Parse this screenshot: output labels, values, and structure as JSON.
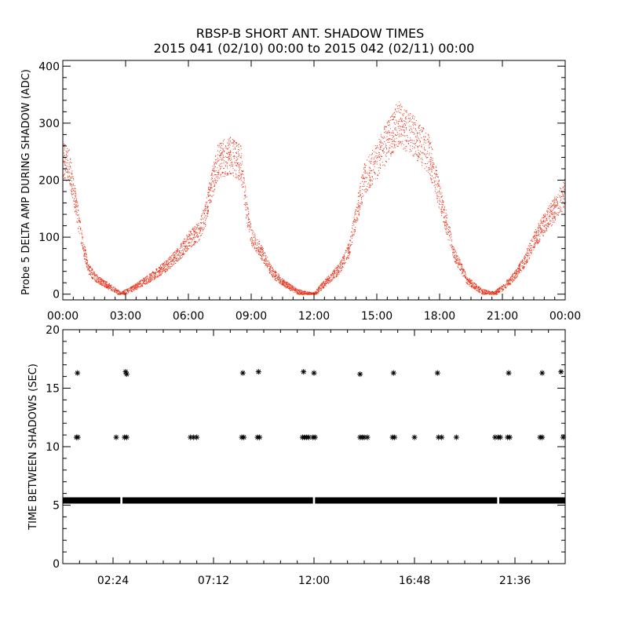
{
  "colors": {
    "background": "#ffffff",
    "axes": "#000000",
    "amp_points": "#e8361e",
    "gap_markers": "#000000"
  },
  "chart_data": [
    {
      "type": "scatter",
      "title": "RBSP-B SHORT ANT. SHADOW TIMES",
      "subtitle": "2015 041 (02/10) 00:00 to 2015 042 (02/11) 00:00",
      "xlabel": "",
      "ylabel": "Probe 5 DELTA AMP DURING SHADOW (ADC)",
      "xlim_hours": [
        0,
        24
      ],
      "ylim": [
        -10,
        410
      ],
      "xticks": [
        {
          "v": 0,
          "label": "00:00"
        },
        {
          "v": 3,
          "label": "03:00"
        },
        {
          "v": 6,
          "label": "06:00"
        },
        {
          "v": 9,
          "label": "09:00"
        },
        {
          "v": 12,
          "label": "12:00"
        },
        {
          "v": 15,
          "label": "15:00"
        },
        {
          "v": 18,
          "label": "18:00"
        },
        {
          "v": 21,
          "label": "21:00"
        },
        {
          "v": 24,
          "label": "00:00"
        }
      ],
      "yticks": [
        {
          "v": 0,
          "label": "0"
        },
        {
          "v": 100,
          "label": "100"
        },
        {
          "v": 200,
          "label": "200"
        },
        {
          "v": 300,
          "label": "300"
        },
        {
          "v": 400,
          "label": "400"
        }
      ],
      "envelope_hours": [
        0.0,
        0.3,
        0.5,
        0.9,
        1.2,
        1.6,
        2.1,
        2.6,
        2.75,
        3.3,
        4.2,
        5.0,
        5.6,
        6.0,
        6.5,
        6.8,
        7.0,
        7.4,
        8.0,
        8.5,
        8.8,
        9.0,
        9.4,
        10.0,
        10.6,
        11.2,
        11.6,
        12.0,
        12.5,
        13.2,
        13.7,
        14.0,
        14.4,
        15.0,
        15.5,
        16.0,
        16.5,
        17.0,
        17.5,
        18.0,
        18.7,
        19.3,
        20.0,
        20.6,
        21.0,
        21.5,
        22.0,
        22.5,
        23.0,
        23.5,
        24.0
      ],
      "envelope_values": [
        235,
        225,
        180,
        95,
        45,
        28,
        16,
        5,
        0,
        10,
        30,
        52,
        75,
        95,
        110,
        140,
        175,
        235,
        245,
        230,
        140,
        100,
        80,
        38,
        18,
        5,
        1,
        0,
        20,
        45,
        82,
        140,
        205,
        235,
        270,
        300,
        285,
        268,
        245,
        170,
        70,
        25,
        5,
        1,
        12,
        30,
        55,
        95,
        125,
        150,
        180
      ]
    },
    {
      "type": "scatter",
      "title": "",
      "xlabel": "",
      "ylabel": "TIME BETWEEN SHADOWS (SEC)",
      "xlim_hours": [
        0,
        24
      ],
      "ylim": [
        0,
        20
      ],
      "xticks": [
        {
          "v": 2.4,
          "label": "02:24"
        },
        {
          "v": 7.2,
          "label": "07:12"
        },
        {
          "v": 12.0,
          "label": "12:00"
        },
        {
          "v": 16.8,
          "label": "16:48"
        },
        {
          "v": 21.6,
          "label": "21:36"
        }
      ],
      "yticks": [
        {
          "v": 0,
          "label": "0"
        },
        {
          "v": 5,
          "label": "5"
        },
        {
          "v": 10,
          "label": "10"
        },
        {
          "v": 15,
          "label": "15"
        },
        {
          "v": 20,
          "label": "20"
        }
      ],
      "baseline_value": 5.4,
      "baseline_segments_hours": [
        [
          0.0,
          2.75
        ],
        [
          2.85,
          11.95
        ],
        [
          12.05,
          20.75
        ],
        [
          20.85,
          24.0
        ]
      ],
      "points": [
        {
          "x": 0.7,
          "y": 16.3
        },
        {
          "x": 3.0,
          "y": 16.4
        },
        {
          "x": 3.05,
          "y": 16.2
        },
        {
          "x": 8.6,
          "y": 16.3
        },
        {
          "x": 9.35,
          "y": 16.4
        },
        {
          "x": 11.5,
          "y": 16.4
        },
        {
          "x": 12.0,
          "y": 16.3
        },
        {
          "x": 14.2,
          "y": 16.2
        },
        {
          "x": 15.8,
          "y": 16.3
        },
        {
          "x": 17.9,
          "y": 16.3
        },
        {
          "x": 21.3,
          "y": 16.3
        },
        {
          "x": 22.9,
          "y": 16.3
        },
        {
          "x": 23.8,
          "y": 16.4
        },
        {
          "x": 0.65,
          "y": 10.8
        },
        {
          "x": 0.72,
          "y": 10.8
        },
        {
          "x": 2.55,
          "y": 10.8
        },
        {
          "x": 2.95,
          "y": 10.8
        },
        {
          "x": 3.05,
          "y": 10.8
        },
        {
          "x": 6.1,
          "y": 10.8
        },
        {
          "x": 6.25,
          "y": 10.8
        },
        {
          "x": 6.4,
          "y": 10.8
        },
        {
          "x": 8.55,
          "y": 10.8
        },
        {
          "x": 8.65,
          "y": 10.8
        },
        {
          "x": 9.3,
          "y": 10.8
        },
        {
          "x": 9.4,
          "y": 10.8
        },
        {
          "x": 11.45,
          "y": 10.8
        },
        {
          "x": 11.55,
          "y": 10.8
        },
        {
          "x": 11.65,
          "y": 10.8
        },
        {
          "x": 11.75,
          "y": 10.8
        },
        {
          "x": 11.95,
          "y": 10.8
        },
        {
          "x": 12.05,
          "y": 10.8
        },
        {
          "x": 14.2,
          "y": 10.8
        },
        {
          "x": 14.3,
          "y": 10.8
        },
        {
          "x": 14.4,
          "y": 10.8
        },
        {
          "x": 14.55,
          "y": 10.8
        },
        {
          "x": 15.75,
          "y": 10.8
        },
        {
          "x": 15.85,
          "y": 10.8
        },
        {
          "x": 16.8,
          "y": 10.8
        },
        {
          "x": 17.95,
          "y": 10.8
        },
        {
          "x": 18.1,
          "y": 10.8
        },
        {
          "x": 18.8,
          "y": 10.8
        },
        {
          "x": 20.65,
          "y": 10.8
        },
        {
          "x": 20.8,
          "y": 10.8
        },
        {
          "x": 20.9,
          "y": 10.8
        },
        {
          "x": 21.25,
          "y": 10.8
        },
        {
          "x": 21.35,
          "y": 10.8
        },
        {
          "x": 22.8,
          "y": 10.8
        },
        {
          "x": 22.9,
          "y": 10.8
        },
        {
          "x": 23.9,
          "y": 10.8
        }
      ]
    }
  ]
}
